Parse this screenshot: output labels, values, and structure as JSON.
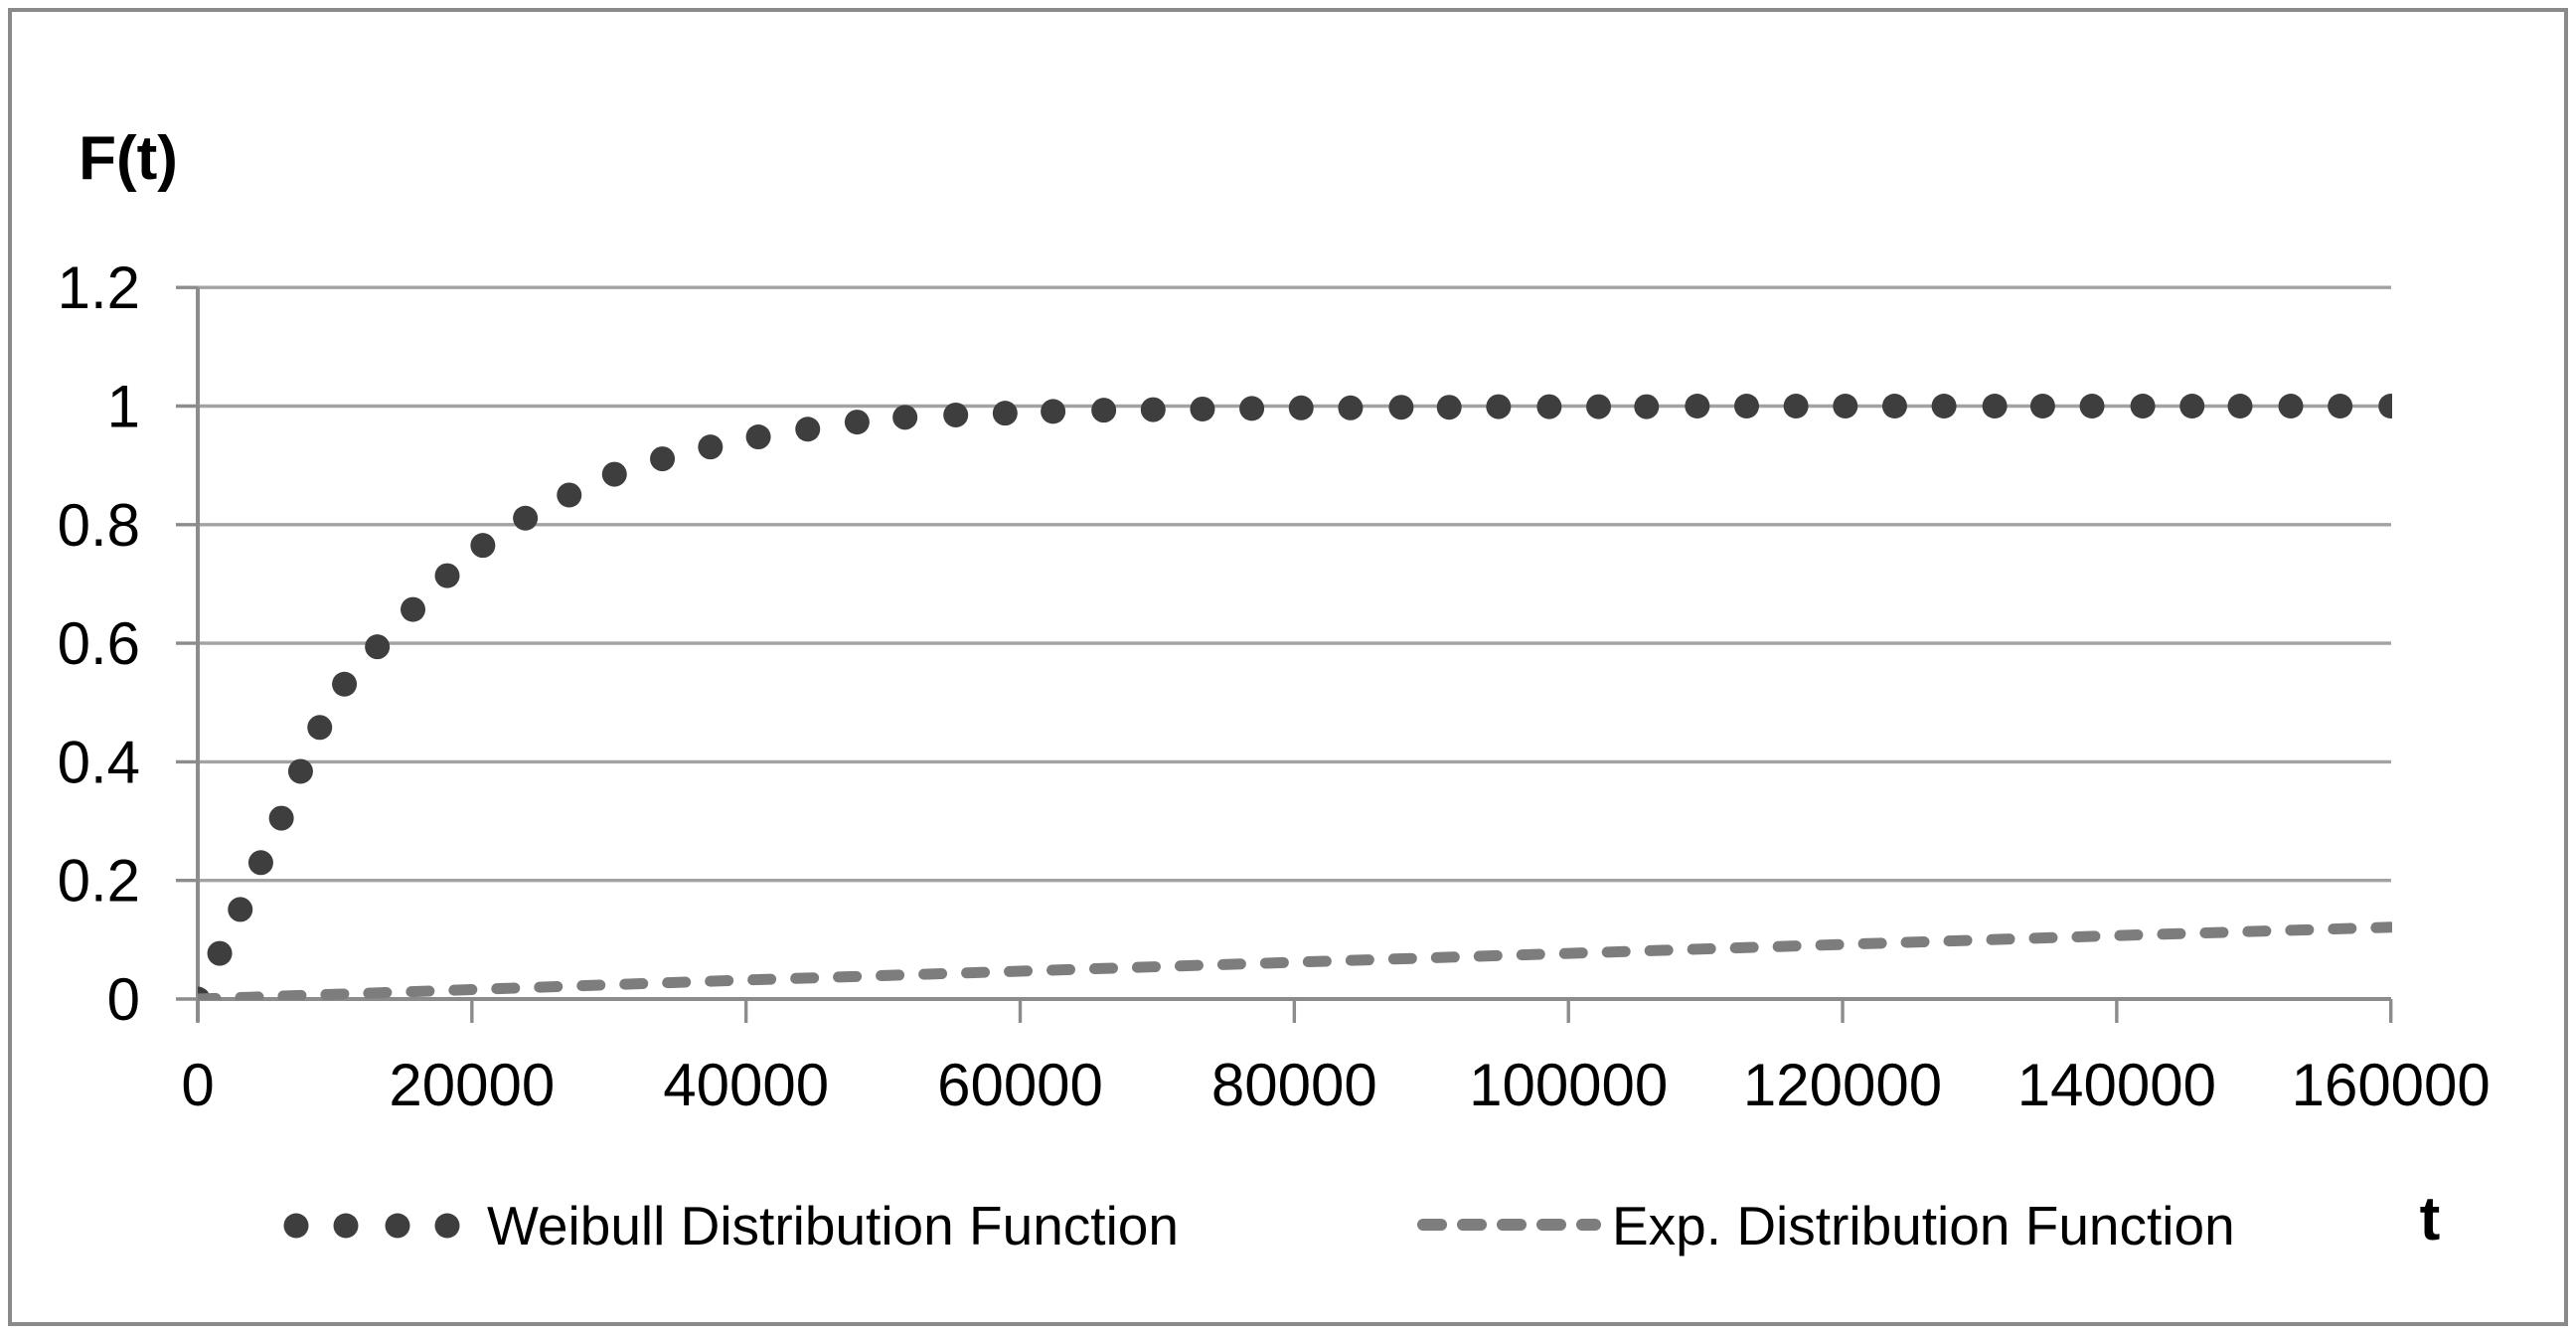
{
  "window": {
    "background": "#ffffff",
    "frame_color": "#8a8a8a"
  },
  "colors": {
    "gridline": "#a2a2a2",
    "axis": "#8c8c8c",
    "text": "#000000",
    "weibull_dot": "#3e3e3e",
    "exp_line": "#7d7d7d"
  },
  "chart_data": {
    "type": "scatter",
    "title": "",
    "ylabel": "F(t)",
    "xlabel": "t",
    "xlim": [
      0,
      160000
    ],
    "ylim": [
      0,
      1.2
    ],
    "grid": "horizontal-only",
    "legend_position": "bottom",
    "x_ticks": [
      {
        "v": 0,
        "label": "0"
      },
      {
        "v": 20000,
        "label": "20000"
      },
      {
        "v": 40000,
        "label": "40000"
      },
      {
        "v": 60000,
        "label": "60000"
      },
      {
        "v": 80000,
        "label": "80000"
      },
      {
        "v": 100000,
        "label": "100000"
      },
      {
        "v": 120000,
        "label": "120000"
      },
      {
        "v": 140000,
        "label": "140000"
      },
      {
        "v": 160000,
        "label": "160000"
      }
    ],
    "y_ticks": [
      {
        "v": 0,
        "label": "0"
      },
      {
        "v": 0.2,
        "label": "0.2"
      },
      {
        "v": 0.4,
        "label": "0.4"
      },
      {
        "v": 0.6,
        "label": "0.6"
      },
      {
        "v": 0.8,
        "label": "0.8"
      },
      {
        "v": 1,
        "label": "1"
      },
      {
        "v": 1.2,
        "label": "1.2"
      }
    ],
    "series": [
      {
        "name": "Weibull Distribution Function",
        "type": "scatter",
        "marker": "circle",
        "marker_color": "#3e3e3e",
        "points": [
          [
            0,
            0
          ],
          [
            1600,
            0.077
          ],
          [
            3100,
            0.151
          ],
          [
            4600,
            0.23
          ],
          [
            6100,
            0.305
          ],
          [
            7500,
            0.384
          ],
          [
            8900,
            0.458
          ],
          [
            10700,
            0.531
          ],
          [
            13100,
            0.594
          ],
          [
            15700,
            0.657
          ],
          [
            18200,
            0.714
          ],
          [
            20800,
            0.765
          ],
          [
            23900,
            0.811
          ],
          [
            27100,
            0.85
          ],
          [
            30400,
            0.885
          ],
          [
            33900,
            0.911
          ],
          [
            37400,
            0.931
          ],
          [
            40900,
            0.948
          ],
          [
            44500,
            0.961
          ],
          [
            48100,
            0.973
          ],
          [
            51600,
            0.981
          ],
          [
            55300,
            0.985
          ],
          [
            58900,
            0.988
          ],
          [
            62400,
            0.991
          ],
          [
            66100,
            0.993
          ],
          [
            69700,
            0.994
          ],
          [
            73300,
            0.995
          ],
          [
            76900,
            0.996
          ],
          [
            80500,
            0.997
          ],
          [
            84100,
            0.997
          ],
          [
            87800,
            0.998
          ],
          [
            91300,
            0.998
          ],
          [
            94900,
            0.999
          ],
          [
            98600,
            0.999
          ],
          [
            102200,
            0.999
          ],
          [
            105700,
            0.999
          ],
          [
            109400,
            1
          ],
          [
            113000,
            1
          ],
          [
            116600,
            1
          ],
          [
            120200,
            1
          ],
          [
            123800,
            1
          ],
          [
            127400,
            1
          ],
          [
            131100,
            1
          ],
          [
            134600,
            1
          ],
          [
            138200,
            1
          ],
          [
            141900,
            1
          ],
          [
            145500,
            1
          ],
          [
            149000,
            1
          ],
          [
            152700,
            1
          ],
          [
            156300,
            1
          ],
          [
            160000,
            1
          ]
        ]
      },
      {
        "name": "Exp. Distribution Function",
        "type": "line",
        "line_style": "dashed",
        "line_color": "#7d7d7d",
        "points": [
          [
            0,
            0
          ],
          [
            20000,
            0.016
          ],
          [
            40000,
            0.032
          ],
          [
            60000,
            0.047
          ],
          [
            80000,
            0.062
          ],
          [
            100000,
            0.077
          ],
          [
            120000,
            0.092
          ],
          [
            140000,
            0.107
          ],
          [
            160000,
            0.121
          ]
        ]
      }
    ]
  }
}
